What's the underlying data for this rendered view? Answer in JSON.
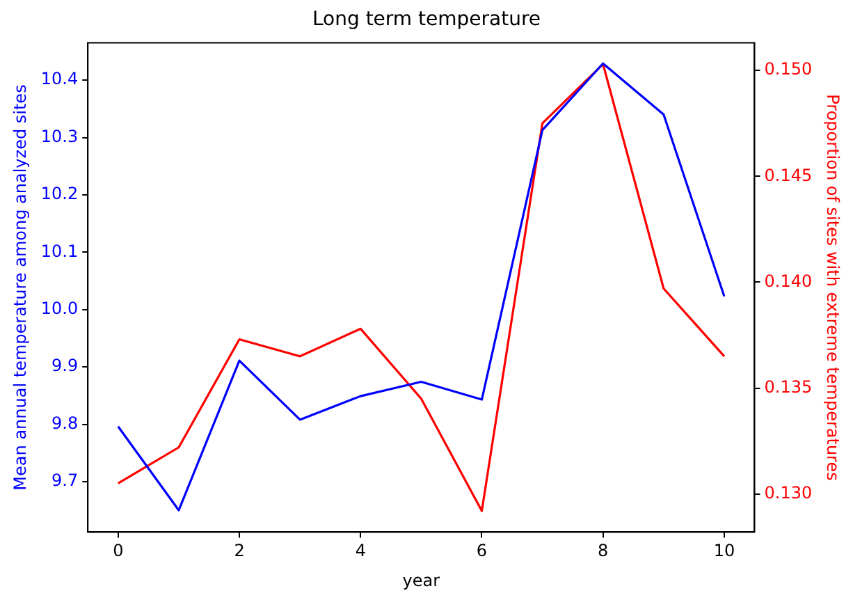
{
  "chart_data": {
    "type": "line",
    "title": "Long term temperature",
    "xlabel": "year",
    "ylabel": "Mean annual temperature among analyzed sites",
    "y2label": "Proportion of sites with extreme temperatures",
    "x": [
      0,
      1,
      2,
      3,
      4,
      5,
      6,
      7,
      8,
      9,
      10
    ],
    "series": [
      {
        "color": "#0000ff",
        "values": [
          9.796,
          9.65,
          9.911,
          9.808,
          9.849,
          9.874,
          9.843,
          10.313,
          10.429,
          10.34,
          10.023
        ]
      },
      {
        "color": "#ff0000",
        "axis": "y2",
        "values": [
          0.1305,
          0.1322,
          0.1373,
          0.1365,
          0.1378,
          0.1345,
          0.1292,
          0.1475,
          0.1503,
          0.1397,
          0.1365
        ]
      }
    ],
    "xlim": [
      -0.5,
      10.5
    ],
    "xticks": [
      0,
      2,
      4,
      6,
      8,
      10
    ],
    "ylim": [
      9.612,
      10.465
    ],
    "yticks": [
      {
        "value": 9.7,
        "label": "9.7"
      },
      {
        "value": 9.8,
        "label": "9.8"
      },
      {
        "value": 9.9,
        "label": "9.9"
      },
      {
        "value": 10,
        "label": "10.0"
      },
      {
        "value": 10.1,
        "label": "10.1"
      },
      {
        "value": 10.2,
        "label": "10.2"
      },
      {
        "value": 10.3,
        "label": "10.3"
      },
      {
        "value": 10.4,
        "label": "10.4"
      }
    ],
    "y2lim": [
      0.1282,
      0.1513
    ],
    "y2ticks": [
      {
        "value": 0.13,
        "label": "0.130"
      },
      {
        "value": 0.135,
        "label": "0.135"
      },
      {
        "value": 0.14,
        "label": "0.140"
      },
      {
        "value": 0.145,
        "label": "0.145"
      },
      {
        "value": 0.15,
        "label": "0.150"
      }
    ],
    "grid": false,
    "legend": false
  }
}
